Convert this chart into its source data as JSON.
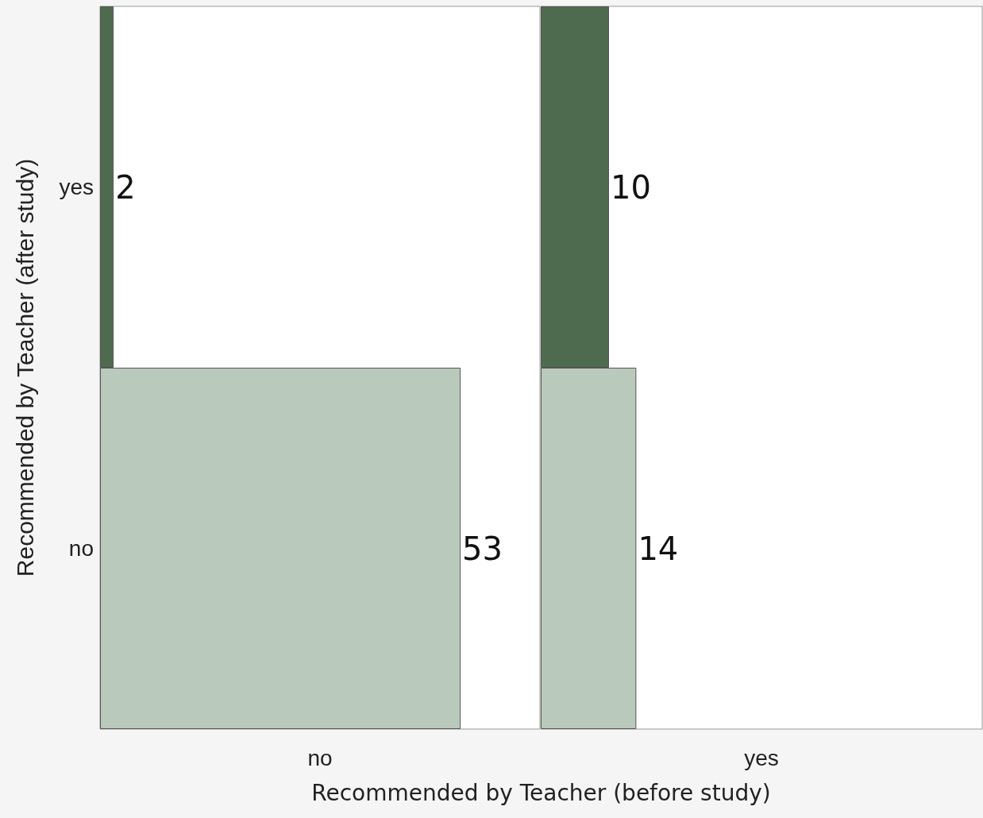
{
  "chart_data": [
    {
      "type": "bar",
      "orientation": "horizontal",
      "xlabel": "no",
      "ylabel": "Recommended by Teacher (after study)",
      "categories": [
        "yes",
        "no"
      ],
      "values": [
        2,
        53
      ],
      "colors": [
        "#4f6b4f",
        "#b9c9bb"
      ],
      "data_labels": true,
      "tick_labels": "y",
      "annotations": [
        "Recommended by Teacher (before study)"
      ]
    },
    {
      "type": "bar",
      "orientation": "horizontal",
      "xlabel": "yes",
      "categories": [
        null,
        null
      ],
      "values": [
        10,
        14
      ],
      "colors": [
        "#4f6b4f",
        "#b9c9bb"
      ],
      "data_labels": true,
      "tick_labels": false
    }
  ]
}
